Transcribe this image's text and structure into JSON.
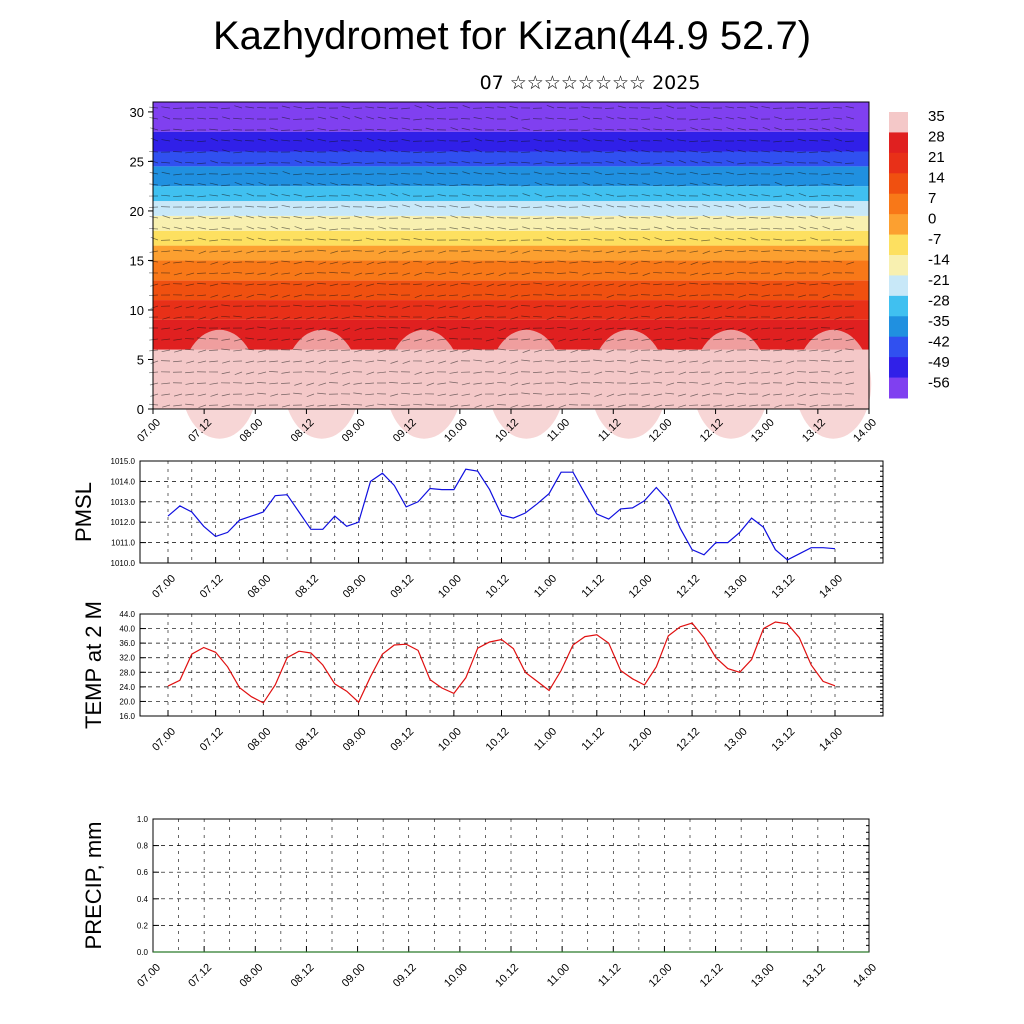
{
  "title": "Kazhydromet for Kizan(44.9 52.7)",
  "subtitle": "07 ☆☆☆☆☆☆☆☆ 2025",
  "chart_data": [
    {
      "type": "heatmap",
      "name": "temperature-wind-cross-section",
      "x_ticks": [
        "07.00",
        "07.12",
        "08.00",
        "08.12",
        "09.00",
        "09.12",
        "10.00",
        "10.12",
        "11.00",
        "11.12",
        "12.00",
        "12.12",
        "13.00",
        "13.12",
        "14.00"
      ],
      "ylim": [
        0,
        31
      ],
      "y_ticks": [
        0,
        5,
        10,
        15,
        20,
        25,
        30
      ],
      "colorbar": {
        "labels": [
          "35",
          "28",
          "21",
          "14",
          "7",
          "0",
          "-7",
          "-14",
          "-21",
          "-28",
          "-35",
          "-42",
          "-49",
          "-56"
        ],
        "colors": [
          "#f4c8c8",
          "#e02020",
          "#e83018",
          "#f05010",
          "#f87818",
          "#fca030",
          "#fde060",
          "#f8f0b0",
          "#c8e8f8",
          "#40c0f0",
          "#2090e0",
          "#3050f0",
          "#3020e8",
          "#8040f0"
        ]
      },
      "bands": [
        {
          "from": 0,
          "to": 6,
          "value": 35
        },
        {
          "from": 6,
          "to": 9,
          "value": 28
        },
        {
          "from": 9,
          "to": 11,
          "value": 21
        },
        {
          "from": 11,
          "to": 13,
          "value": 14
        },
        {
          "from": 13,
          "to": 15,
          "value": 7
        },
        {
          "from": 15,
          "to": 16.5,
          "value": 0
        },
        {
          "from": 16.5,
          "to": 18,
          "value": -7
        },
        {
          "from": 18,
          "to": 19.5,
          "value": -14
        },
        {
          "from": 19.5,
          "to": 21,
          "value": -21
        },
        {
          "from": 21,
          "to": 22.5,
          "value": -28
        },
        {
          "from": 22.5,
          "to": 24.5,
          "value": -35
        },
        {
          "from": 24.5,
          "to": 26,
          "value": -42
        },
        {
          "from": 26,
          "to": 28,
          "value": -49
        },
        {
          "from": 28,
          "to": 31,
          "value": -56
        }
      ]
    },
    {
      "type": "line",
      "name": "pmsl",
      "ylabel": "PMSL",
      "ylim": [
        1010,
        1015
      ],
      "y_ticks": [
        "1010.0",
        "1011.0",
        "1012.0",
        "1013.0",
        "1014.0",
        "1015.0"
      ],
      "x_ticks": [
        "07.00",
        "07.12",
        "08.00",
        "08.12",
        "09.00",
        "09.12",
        "10.00",
        "10.12",
        "11.00",
        "11.12",
        "12.00",
        "12.12",
        "13.00",
        "13.12",
        "14.00"
      ],
      "color": "#1010e0",
      "values": [
        1012.3,
        1012.8,
        1012.5,
        1011.8,
        1011.3,
        1011.5,
        1012.1,
        1012.3,
        1012.5,
        1013.3,
        1013.35,
        1012.5,
        1011.65,
        1011.65,
        1012.3,
        1011.8,
        1012.0,
        1014.0,
        1014.4,
        1013.8,
        1012.75,
        1013.0,
        1013.65,
        1013.6,
        1013.6,
        1014.6,
        1014.5,
        1013.6,
        1012.35,
        1012.2,
        1012.45,
        1012.9,
        1013.4,
        1014.45,
        1014.45,
        1013.4,
        1012.4,
        1012.15,
        1012.65,
        1012.7,
        1013.05,
        1013.7,
        1013.05,
        1011.7,
        1010.65,
        1010.4,
        1011.0,
        1011.0,
        1011.5,
        1012.2,
        1011.75,
        1010.65,
        1010.15,
        1010.45,
        1010.75,
        1010.75,
        1010.7
      ]
    },
    {
      "type": "line",
      "name": "temp-2m",
      "ylabel": "TEMP at 2 M",
      "ylim": [
        16,
        44
      ],
      "y_ticks": [
        "16.0",
        "20.0",
        "24.0",
        "28.0",
        "32.0",
        "36.0",
        "40.0",
        "44.0"
      ],
      "x_ticks": [
        "07.00",
        "07.12",
        "08.00",
        "08.12",
        "09.00",
        "09.12",
        "10.00",
        "10.12",
        "11.00",
        "11.12",
        "12.00",
        "12.12",
        "13.00",
        "13.12",
        "14.00"
      ],
      "color": "#e01010",
      "values": [
        24.2,
        25.8,
        33.0,
        34.8,
        33.5,
        29.5,
        23.8,
        21.3,
        19.6,
        24.5,
        32.0,
        33.8,
        33.3,
        30.0,
        24.8,
        22.8,
        19.8,
        26.8,
        33.0,
        35.5,
        35.7,
        34.0,
        26.0,
        23.7,
        22.2,
        26.5,
        34.6,
        36.3,
        37.0,
        34.5,
        28.0,
        25.5,
        23.0,
        28.5,
        35.5,
        37.8,
        38.3,
        36.0,
        28.5,
        26.2,
        24.5,
        29.5,
        38.0,
        40.5,
        41.5,
        37.5,
        32.0,
        29.0,
        28.0,
        31.5,
        40.0,
        41.8,
        41.3,
        37.5,
        30.0,
        25.5,
        24.3
      ]
    },
    {
      "type": "line",
      "name": "precip",
      "ylabel": "PRECIP, mm",
      "ylim": [
        0,
        1
      ],
      "y_ticks": [
        "0.0",
        "0.2",
        "0.4",
        "0.6",
        "0.8",
        "1.0"
      ],
      "x_ticks": [
        "07.00",
        "07.12",
        "08.00",
        "08.12",
        "09.00",
        "09.12",
        "10.00",
        "10.12",
        "11.00",
        "11.12",
        "12.00",
        "12.12",
        "13.00",
        "13.12",
        "14.00"
      ],
      "color": "#2a7a2a",
      "values": [
        0,
        0,
        0,
        0,
        0,
        0,
        0,
        0,
        0,
        0,
        0,
        0,
        0,
        0,
        0,
        0,
        0,
        0,
        0,
        0,
        0,
        0,
        0,
        0,
        0,
        0,
        0,
        0,
        0,
        0,
        0,
        0,
        0,
        0,
        0,
        0,
        0,
        0,
        0,
        0,
        0,
        0,
        0,
        0,
        0,
        0,
        0,
        0,
        0,
        0,
        0,
        0,
        0,
        0,
        0,
        0,
        0
      ]
    }
  ]
}
